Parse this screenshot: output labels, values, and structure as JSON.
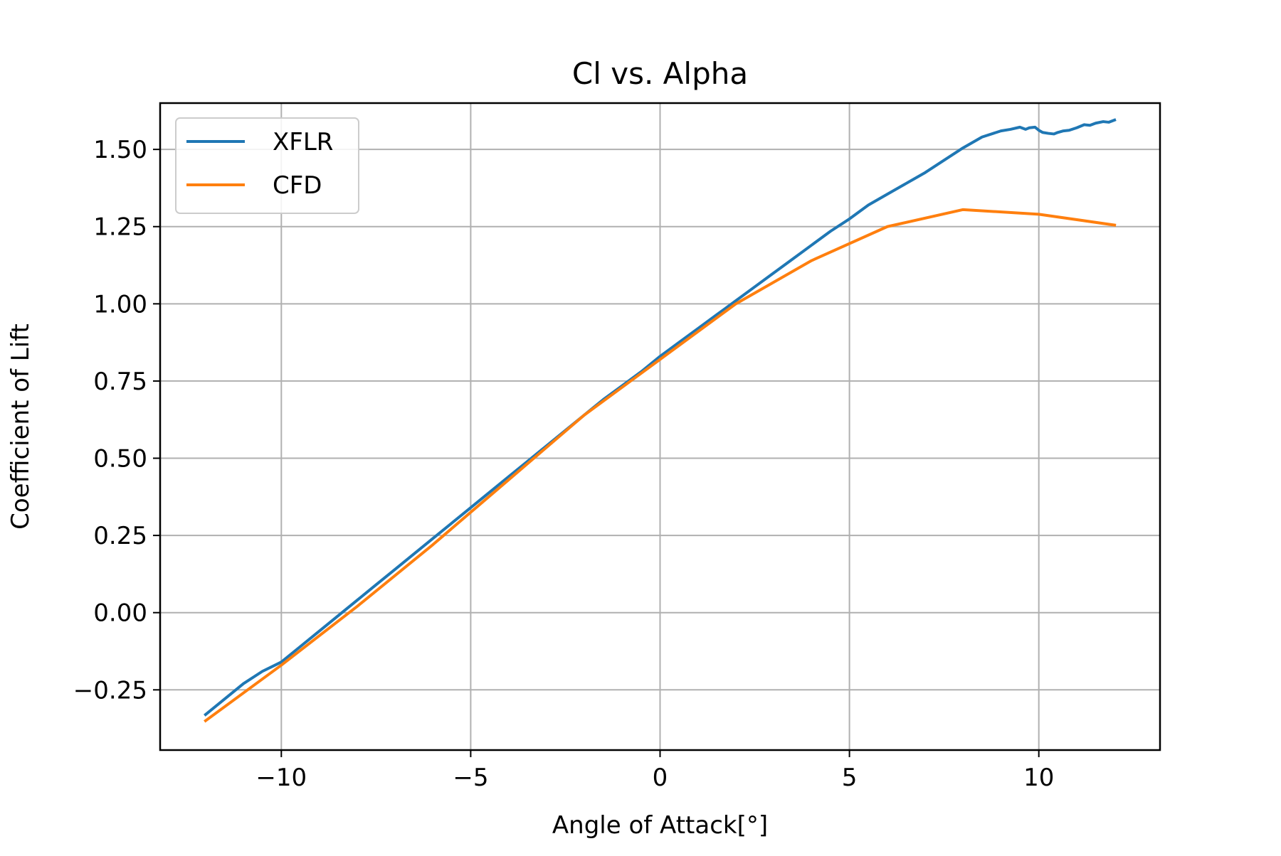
{
  "chart_data": {
    "type": "line",
    "title": "Cl vs. Alpha",
    "xlabel": "Angle of Attack[°]",
    "ylabel": "Coefficient of Lift",
    "xlim": [
      -13.2,
      13.2
    ],
    "ylim": [
      -0.445,
      1.65
    ],
    "grid": true,
    "legend_position": "upper left",
    "xticks": [
      {
        "value": -10,
        "label": "−10"
      },
      {
        "value": -5,
        "label": "−5"
      },
      {
        "value": 0,
        "label": "0"
      },
      {
        "value": 5,
        "label": "5"
      },
      {
        "value": 10,
        "label": "10"
      }
    ],
    "yticks": [
      {
        "value": -0.25,
        "label": "−0.25"
      },
      {
        "value": 0.0,
        "label": "0.00"
      },
      {
        "value": 0.25,
        "label": "0.25"
      },
      {
        "value": 0.5,
        "label": "0.50"
      },
      {
        "value": 0.75,
        "label": "0.75"
      },
      {
        "value": 1.0,
        "label": "1.00"
      },
      {
        "value": 1.25,
        "label": "1.25"
      },
      {
        "value": 1.5,
        "label": "1.50"
      }
    ],
    "series": [
      {
        "name": "XFLR",
        "color": "#1f77b4",
        "x": [
          -12,
          -11.5,
          -11,
          -10.5,
          -10,
          -9.5,
          -9,
          -8.5,
          -8,
          -7.5,
          -7,
          -6.5,
          -6,
          -5.5,
          -5,
          -4.5,
          -4,
          -3.5,
          -3,
          -2.5,
          -2,
          -1.5,
          -1,
          -0.5,
          0,
          0.5,
          1,
          1.5,
          2,
          2.5,
          3,
          3.5,
          4,
          4.5,
          5,
          5.5,
          6,
          6.5,
          7,
          7.5,
          8,
          8.5,
          9,
          9.25,
          9.5,
          9.65,
          9.75,
          9.9,
          10.0,
          10.1,
          10.25,
          10.4,
          10.5,
          10.65,
          10.8,
          11.0,
          11.2,
          11.35,
          11.5,
          11.7,
          11.85,
          12.0
        ],
        "y": [
          -0.33,
          -0.28,
          -0.23,
          -0.19,
          -0.16,
          -0.11,
          -0.06,
          -0.01,
          0.04,
          0.09,
          0.14,
          0.19,
          0.24,
          0.29,
          0.34,
          0.39,
          0.44,
          0.49,
          0.54,
          0.59,
          0.64,
          0.69,
          0.735,
          0.78,
          0.83,
          0.875,
          0.92,
          0.965,
          1.01,
          1.055,
          1.1,
          1.145,
          1.19,
          1.235,
          1.275,
          1.32,
          1.355,
          1.39,
          1.425,
          1.465,
          1.505,
          1.54,
          1.56,
          1.565,
          1.572,
          1.565,
          1.57,
          1.572,
          1.562,
          1.555,
          1.552,
          1.55,
          1.555,
          1.56,
          1.562,
          1.57,
          1.58,
          1.578,
          1.585,
          1.59,
          1.588,
          1.595
        ]
      },
      {
        "name": "CFD",
        "color": "#ff7f0e",
        "x": [
          -12,
          -10,
          -8,
          -6,
          -4,
          -2,
          0,
          2,
          4,
          6,
          8,
          10,
          12
        ],
        "y": [
          -0.35,
          -0.17,
          0.02,
          0.22,
          0.43,
          0.64,
          0.82,
          1.0,
          1.14,
          1.25,
          1.305,
          1.29,
          1.255
        ]
      }
    ]
  }
}
